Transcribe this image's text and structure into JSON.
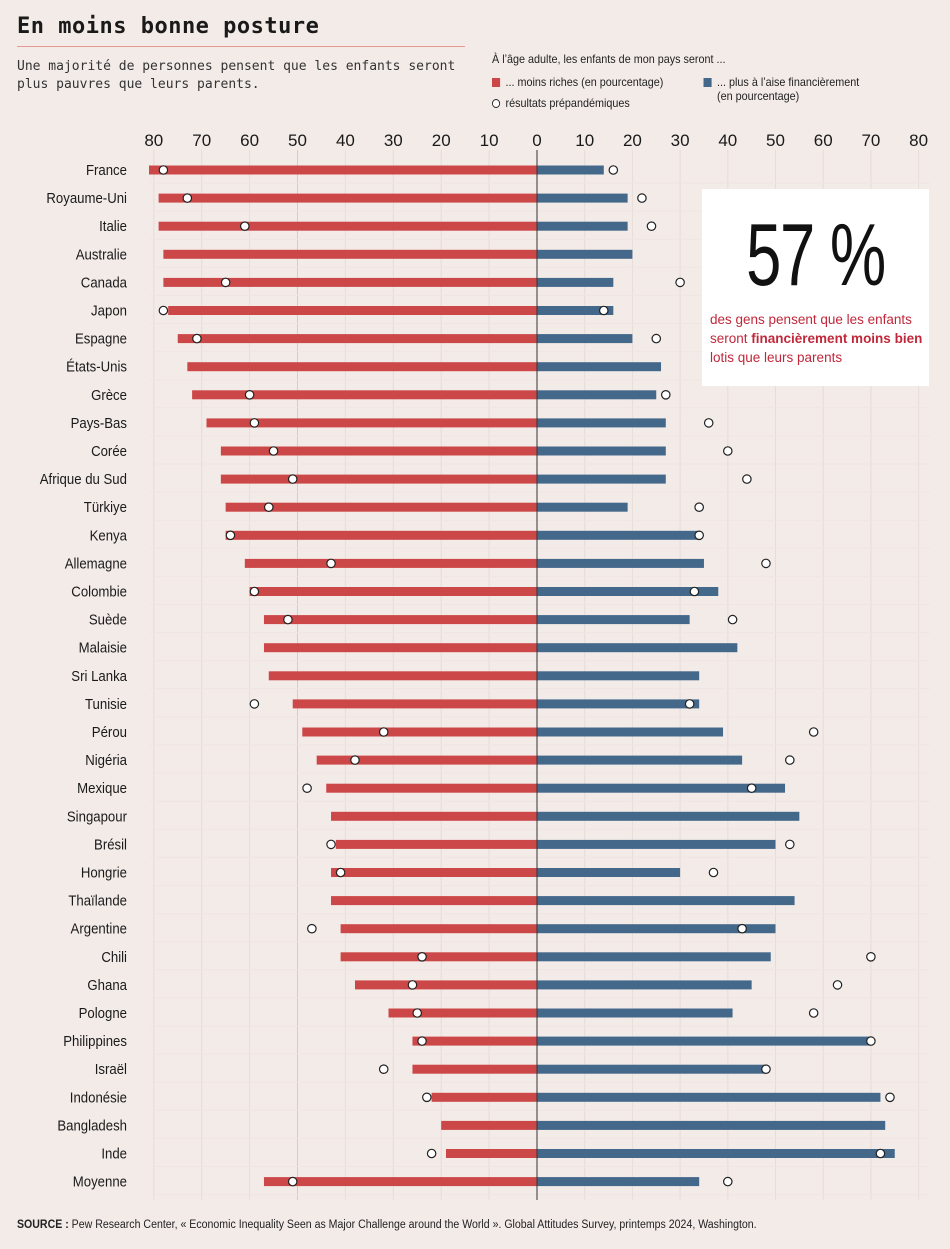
{
  "header": {
    "title": "En moins bonne posture",
    "subtitle": "Une majorité de personnes pensent que les enfants seront plus pauvres que leurs parents."
  },
  "legend": {
    "heading": "À l’âge adulte, les enfants de mon pays seront ...",
    "poorer_label": "... moins riches (en pourcentage)",
    "richer_label_line1": "... plus à l’aise financièrement",
    "richer_label_line2": "(en pourcentage)",
    "prepandemic_label": "résultats prépandémiques"
  },
  "callout": {
    "value": "57 %",
    "text_before": "des gens pensent que les enfants seront ",
    "text_bold": "financièrement moins bien",
    "text_after": " lotis que leurs parents"
  },
  "source": {
    "label": "SOURCE :",
    "text": "Pew Research Center, « Economic Inequality Seen as Major Challenge around the World ». Global Attitudes Survey, printemps 2024, Washington."
  },
  "colors": {
    "poorer": "#cc4848",
    "richer": "#44688a",
    "background": "#f3ebe8",
    "accent_text": "#c0283a"
  },
  "chart_data": {
    "type": "bar",
    "orientation": "horizontal-diverging",
    "title": "En moins bonne posture",
    "xlabel": "",
    "ylabel": "",
    "left_axis_ticks": [
      80,
      70,
      60,
      50,
      40,
      30,
      20,
      10,
      0
    ],
    "right_axis_ticks": [
      0,
      10,
      20,
      30,
      40,
      50,
      60,
      70,
      80
    ],
    "xlim": [
      0,
      80
    ],
    "grid": true,
    "legend_position": "top-right",
    "categories": [
      "France",
      "Royaume-Uni",
      "Italie",
      "Australie",
      "Canada",
      "Japon",
      "Espagne",
      "États-Unis",
      "Grèce",
      "Pays-Bas",
      "Corée",
      "Afrique du Sud",
      "Türkiye",
      "Kenya",
      "Allemagne",
      "Colombie",
      "Suède",
      "Malaisie",
      "Sri Lanka",
      "Tunisie",
      "Pérou",
      "Nigéria",
      "Mexique",
      "Singapour",
      "Brésil",
      "Hongrie",
      "Thaïlande",
      "Argentine",
      "Chili",
      "Ghana",
      "Pologne",
      "Philippines",
      "Israël",
      "Indonésie",
      "Bangladesh",
      "Inde",
      "Moyenne"
    ],
    "series": [
      {
        "name": "... moins riches (en pourcentage)",
        "side": "left",
        "values": [
          81,
          79,
          79,
          78,
          78,
          77,
          75,
          73,
          72,
          69,
          66,
          66,
          65,
          65,
          61,
          60,
          57,
          57,
          56,
          51,
          49,
          46,
          44,
          43,
          42,
          43,
          43,
          41,
          41,
          38,
          31,
          26,
          26,
          22,
          20,
          19,
          57
        ]
      },
      {
        "name": "résultats prépandémiques (moins riches)",
        "side": "left",
        "marker": "circle",
        "values": [
          78,
          73,
          61,
          null,
          65,
          78,
          71,
          null,
          60,
          59,
          55,
          51,
          56,
          64,
          43,
          59,
          52,
          null,
          null,
          59,
          32,
          38,
          48,
          null,
          43,
          41,
          null,
          47,
          24,
          26,
          25,
          24,
          32,
          23,
          null,
          22,
          51
        ]
      },
      {
        "name": "... plus à l’aise financièrement (en pourcentage)",
        "side": "right",
        "values": [
          14,
          19,
          19,
          20,
          16,
          16,
          20,
          26,
          25,
          27,
          27,
          27,
          19,
          34,
          35,
          38,
          32,
          42,
          34,
          34,
          39,
          43,
          52,
          55,
          50,
          30,
          54,
          50,
          49,
          45,
          41,
          70,
          48,
          72,
          73,
          75,
          34
        ]
      },
      {
        "name": "résultats prépandémiques (plus à l’aise)",
        "side": "right",
        "marker": "circle",
        "values": [
          16,
          22,
          24,
          null,
          30,
          14,
          25,
          null,
          27,
          36,
          40,
          44,
          34,
          34,
          48,
          33,
          41,
          null,
          null,
          32,
          58,
          53,
          45,
          null,
          53,
          37,
          null,
          43,
          70,
          63,
          58,
          70,
          48,
          74,
          null,
          72,
          40
        ]
      }
    ]
  }
}
